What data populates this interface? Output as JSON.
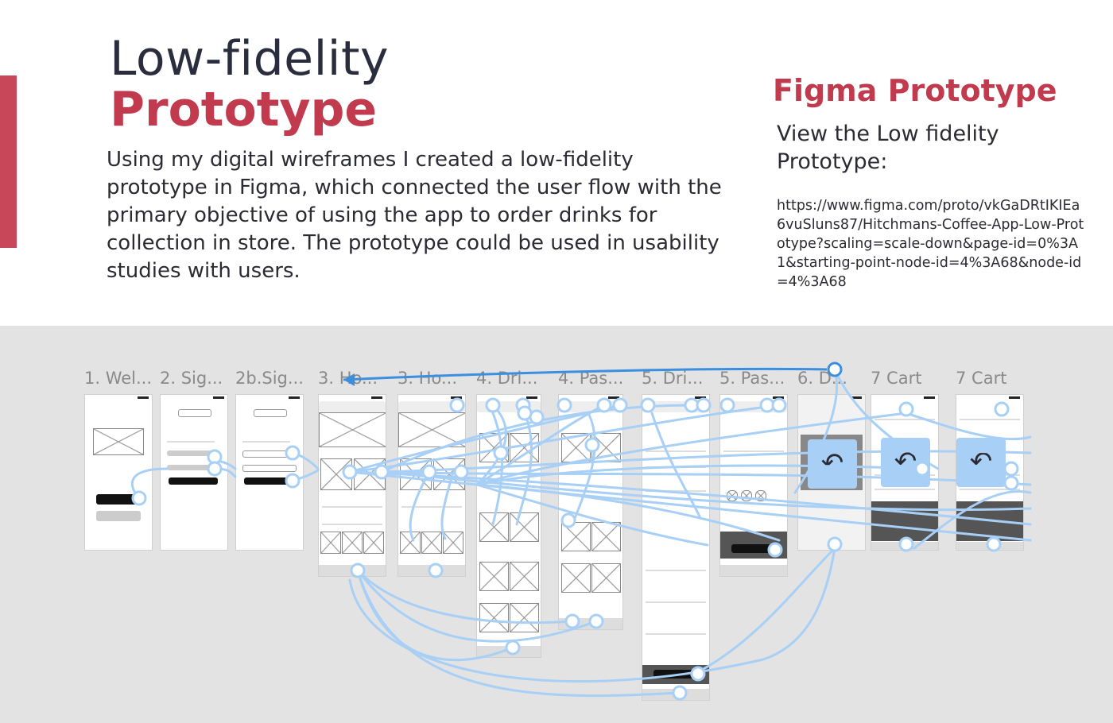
{
  "heading": {
    "light": "Low-fidelity",
    "bold": "Prototype"
  },
  "description": "Using my digital wireframes I created a low-fidelity prototype in Figma, which connected the user flow with the primary objective of using the app to order drinks for collection in store.  The prototype could be used in usability studies with users.",
  "figma": {
    "title": "Figma Prototype",
    "subtitle": "View the Low fidelity Prototype:",
    "url": "https://www.figma.com/proto/vkGaDRtIKIEa6vuSluns87/Hitchmans-Coffee-App-Low-Prototype?scaling=scale-down&page-id=0%3A1&starting-point-node-id=4%3A68&node-id=4%3A68"
  },
  "frames": [
    {
      "label": "1. Wel..."
    },
    {
      "label": "2. Sig..."
    },
    {
      "label": "2b.Sig..."
    },
    {
      "label": "3. Ho..."
    },
    {
      "label": "3. Ho..."
    },
    {
      "label": "4. Dri..."
    },
    {
      "label": "4. Pas..."
    },
    {
      "label": "5. Dri..."
    },
    {
      "label": "5. Pas..."
    },
    {
      "label": "6. D..."
    },
    {
      "label": "7 Cart"
    },
    {
      "label": "7 Cart"
    }
  ],
  "icons": {
    "back": "back-arrow-icon"
  },
  "colors": {
    "accent": "#c23a4e",
    "flow": "#a8cff5",
    "canvas": "#e3e3e3"
  }
}
